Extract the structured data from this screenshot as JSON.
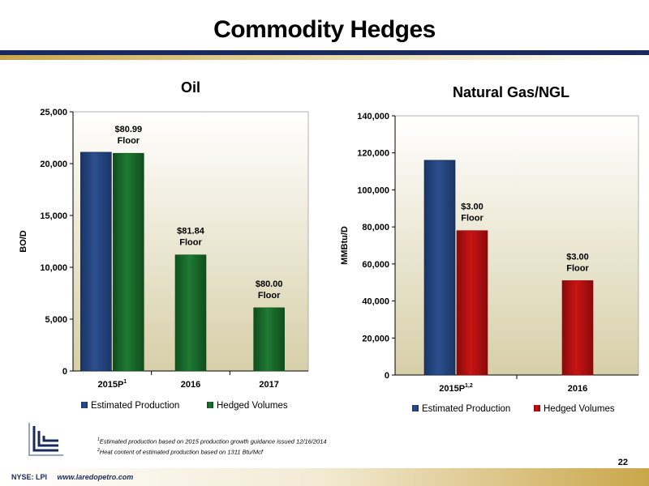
{
  "slide": {
    "title": "Commodity Hedges",
    "page_number": "22",
    "ticker": "NYSE: LPI",
    "url": "www.laredopetro.com",
    "footnote1": "Estimated production based on 2015 production growth guidance issued  12/16/2014",
    "footnote1_mark": "1",
    "footnote2": "Heat content of estimated production based on 1311 Btu/Mcf",
    "footnote2_mark": "2"
  },
  "colors": {
    "estimated": "#2c4f8e",
    "hedged_oil": "#1e7a32",
    "hedged_gas": "#c81414",
    "title_bar_dark": "#1b2a5c",
    "title_bar_gold": "#c9a64a"
  },
  "icons": {
    "logo": "laredo-logo-icon"
  },
  "chart_data": [
    {
      "type": "bar",
      "title": "Oil",
      "ylabel": "BO/D",
      "ylim": [
        0,
        25000
      ],
      "yticks": [
        0,
        5000,
        10000,
        15000,
        20000,
        25000
      ],
      "ytick_labels": [
        "0",
        "5,000",
        "10,000",
        "15,000",
        "20,000",
        "25,000"
      ],
      "categories": [
        "2015P",
        "2016",
        "2017"
      ],
      "category_superscripts": [
        "1",
        "",
        ""
      ],
      "series": [
        {
          "name": "Estimated Production",
          "values": [
            21100,
            null,
            null
          ]
        },
        {
          "name": "Hedged Volumes",
          "values": [
            21000,
            11200,
            6100
          ]
        }
      ],
      "annotations": [
        {
          "category": "2015P",
          "line1": "$80.99",
          "line2": "Floor"
        },
        {
          "category": "2016",
          "line1": "$81.84",
          "line2": "Floor"
        },
        {
          "category": "2017",
          "line1": "$80.00",
          "line2": "Floor"
        }
      ],
      "legend": "bottom",
      "grid": false
    },
    {
      "type": "bar",
      "title": "Natural Gas/NGL",
      "ylabel": "MMBtu/D",
      "ylim": [
        0,
        140000
      ],
      "yticks": [
        0,
        20000,
        40000,
        60000,
        80000,
        100000,
        120000,
        140000
      ],
      "ytick_labels": [
        "0",
        "20,000",
        "40,000",
        "60,000",
        "80,000",
        "100,000",
        "120,000",
        "140,000"
      ],
      "categories": [
        "2015P",
        "2016"
      ],
      "category_superscripts": [
        "1,2",
        ""
      ],
      "series": [
        {
          "name": "Estimated Production",
          "values": [
            116000,
            null
          ]
        },
        {
          "name": "Hedged Volumes",
          "values": [
            78000,
            51000
          ]
        }
      ],
      "annotations": [
        {
          "category": "2015P",
          "line1": "$3.00",
          "line2": "Floor"
        },
        {
          "category": "2016",
          "line1": "$3.00",
          "line2": "Floor"
        }
      ],
      "legend": "bottom",
      "grid": false
    }
  ]
}
